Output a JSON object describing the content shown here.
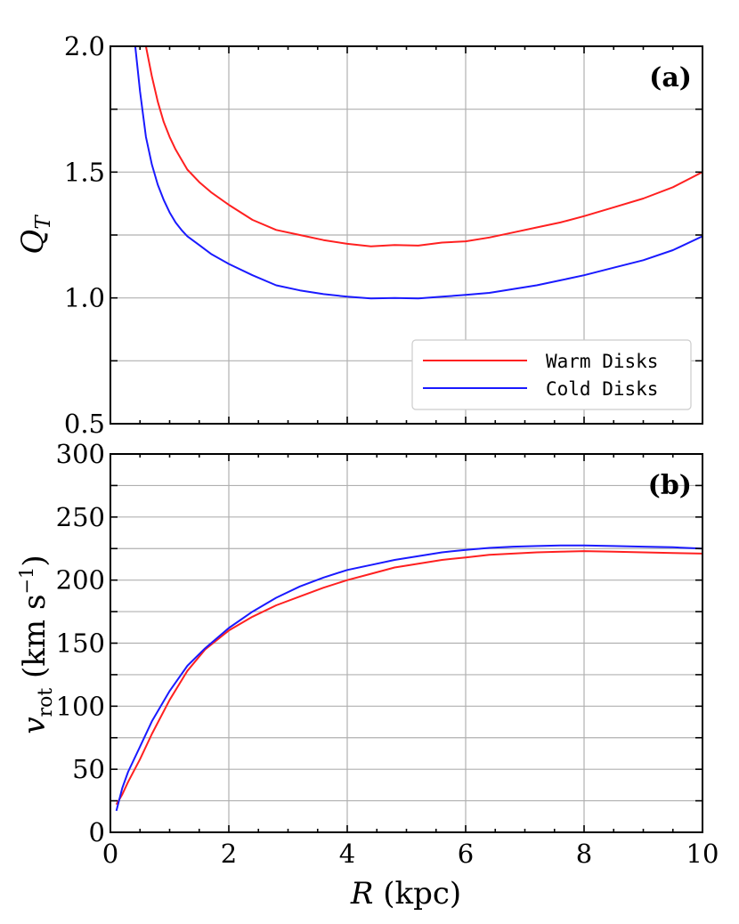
{
  "chart_data": [
    {
      "id": "a",
      "type": "line",
      "panel_label": "(a)",
      "ylabel": "Q_T",
      "ylabel_main": "Q",
      "ylabel_sub": "T",
      "xlim": [
        0,
        10
      ],
      "ylim": [
        0.5,
        2.0
      ],
      "yticks": [
        0.5,
        1.0,
        1.5,
        2.0
      ],
      "ytick_labels": [
        "0.5",
        "1.0",
        "1.5",
        "2.0"
      ],
      "xticks": [
        0,
        2,
        4,
        6,
        8,
        10
      ],
      "xtick_labels": [],
      "grid": true,
      "legend_position": "bottom-right",
      "series": [
        {
          "name": "Warm Disks",
          "color": "#ff2020",
          "x": [
            0.6,
            0.7,
            0.8,
            0.9,
            1.0,
            1.1,
            1.2,
            1.3,
            1.5,
            1.7,
            2.0,
            2.4,
            2.8,
            3.2,
            3.6,
            4.0,
            4.4,
            4.8,
            5.2,
            5.6,
            6.0,
            6.4,
            6.8,
            7.2,
            7.6,
            8.0,
            8.5,
            9.0,
            9.5,
            10.0
          ],
          "values": [
            2.0,
            1.88,
            1.78,
            1.7,
            1.64,
            1.59,
            1.55,
            1.51,
            1.46,
            1.42,
            1.37,
            1.31,
            1.27,
            1.25,
            1.23,
            1.215,
            1.205,
            1.21,
            1.208,
            1.22,
            1.225,
            1.24,
            1.26,
            1.28,
            1.3,
            1.325,
            1.36,
            1.395,
            1.44,
            1.5
          ]
        },
        {
          "name": "Cold Disks",
          "color": "#1a1aff",
          "x": [
            0.42,
            0.5,
            0.6,
            0.7,
            0.8,
            0.9,
            1.0,
            1.1,
            1.2,
            1.3,
            1.5,
            1.7,
            2.0,
            2.4,
            2.8,
            3.2,
            3.6,
            4.0,
            4.4,
            4.8,
            5.2,
            5.6,
            6.0,
            6.4,
            6.8,
            7.2,
            7.6,
            8.0,
            8.5,
            9.0,
            9.5,
            10.0
          ],
          "values": [
            2.0,
            1.82,
            1.64,
            1.53,
            1.45,
            1.39,
            1.34,
            1.3,
            1.27,
            1.245,
            1.21,
            1.175,
            1.135,
            1.09,
            1.05,
            1.03,
            1.015,
            1.005,
            0.998,
            1.0,
            0.998,
            1.005,
            1.012,
            1.02,
            1.035,
            1.05,
            1.07,
            1.09,
            1.12,
            1.15,
            1.19,
            1.245
          ]
        }
      ]
    },
    {
      "id": "b",
      "type": "line",
      "panel_label": "(b)",
      "ylabel": "v_rot (km s^-1)",
      "ylabel_main": "v",
      "ylabel_sub": "rot",
      "ylabel_rest": " (km s",
      "ylabel_sup": "−1",
      "ylabel_close": ")",
      "xlabel": "R (kpc)",
      "xlabel_main": "R",
      "xlabel_rest": " (kpc)",
      "xlim": [
        0,
        10
      ],
      "ylim": [
        0,
        300
      ],
      "yticks": [
        0,
        50,
        100,
        150,
        200,
        250,
        300
      ],
      "ytick_labels": [
        "0",
        "50",
        "100",
        "150",
        "200",
        "250",
        "300"
      ],
      "xticks": [
        0,
        2,
        4,
        6,
        8,
        10
      ],
      "xtick_labels": [
        "0",
        "2",
        "4",
        "6",
        "8",
        "10"
      ],
      "grid": true,
      "series": [
        {
          "name": "Warm Disks",
          "color": "#ff2020",
          "x": [
            0.1,
            0.2,
            0.3,
            0.5,
            0.7,
            1.0,
            1.3,
            1.6,
            2.0,
            2.4,
            2.8,
            3.2,
            3.6,
            4.0,
            4.4,
            4.8,
            5.2,
            5.6,
            6.0,
            6.4,
            6.8,
            7.2,
            7.6,
            8.0,
            8.5,
            9.0,
            9.5,
            10.0
          ],
          "values": [
            22,
            30,
            40,
            58,
            78,
            105,
            128,
            145,
            160,
            171,
            180,
            187,
            194,
            200,
            205,
            210,
            213,
            216,
            218,
            220,
            221,
            222,
            222.5,
            223,
            222.5,
            222,
            221.5,
            221
          ]
        },
        {
          "name": "Cold Disks",
          "color": "#1a1aff",
          "x": [
            0.1,
            0.2,
            0.3,
            0.5,
            0.7,
            1.0,
            1.3,
            1.6,
            2.0,
            2.4,
            2.8,
            3.2,
            3.6,
            4.0,
            4.4,
            4.8,
            5.2,
            5.6,
            6.0,
            6.4,
            6.8,
            7.2,
            7.6,
            8.0,
            8.5,
            9.0,
            9.5,
            10.0
          ],
          "values": [
            17,
            35,
            48,
            68,
            88,
            112,
            132,
            146,
            162,
            175,
            186,
            195,
            202,
            208,
            212,
            216,
            219,
            222,
            224,
            225.5,
            226.5,
            227,
            227.5,
            227.5,
            227,
            226.5,
            226,
            225
          ]
        }
      ]
    }
  ]
}
